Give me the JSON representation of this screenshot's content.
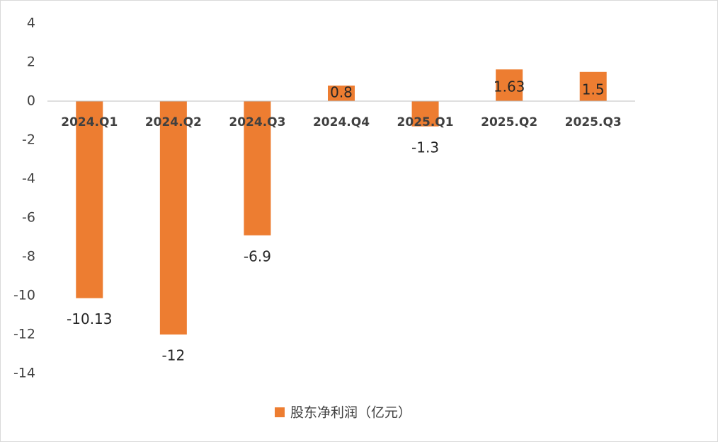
{
  "chart_data": {
    "type": "bar",
    "categories": [
      "2024.Q1",
      "2024.Q2",
      "2024.Q3",
      "2024.Q4",
      "2025.Q1",
      "2025.Q2",
      "2025.Q3"
    ],
    "series": [
      {
        "name": "股东净利润（亿元）",
        "color": "#ed7d31",
        "values": [
          -10.13,
          -12,
          -6.9,
          0.8,
          -1.3,
          1.63,
          1.5
        ]
      }
    ],
    "ylim": [
      -14,
      4
    ],
    "yticks": [
      -14,
      -12,
      -10,
      -8,
      -6,
      -4,
      -2,
      0,
      2,
      4
    ],
    "grid": false,
    "legend": "bottom"
  }
}
